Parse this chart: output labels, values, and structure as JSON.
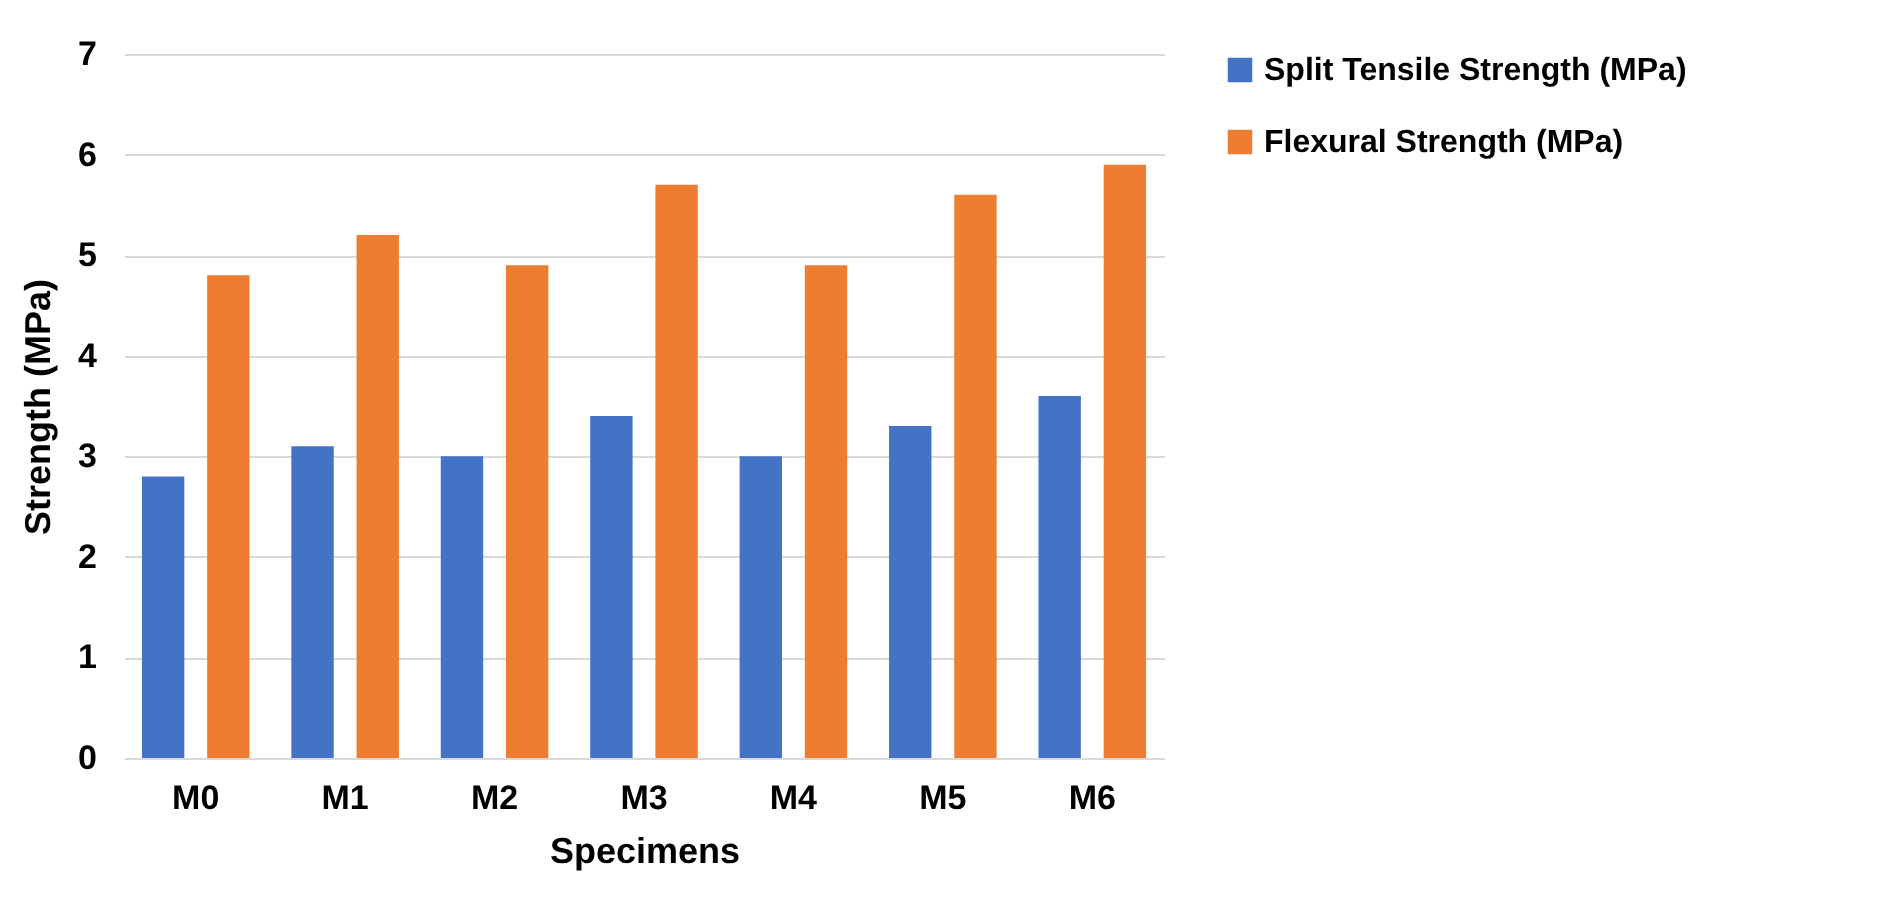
{
  "chart_data": {
    "type": "bar",
    "xlabel": "Specimens",
    "ylabel": "Strength (MPa)",
    "categories": [
      "M0",
      "M1",
      "M2",
      "M3",
      "M4",
      "M5",
      "M6"
    ],
    "series": [
      {
        "name": "Split Tensile Strength (MPa)",
        "color": "#4472c4",
        "values": [
          2.8,
          3.1,
          3.0,
          3.4,
          3.0,
          3.3,
          3.6
        ]
      },
      {
        "name": "Flexural Strength (MPa)",
        "color": "#ed7d31",
        "values": [
          4.8,
          5.2,
          4.9,
          5.7,
          4.9,
          5.6,
          5.9
        ]
      }
    ],
    "ylim": [
      0,
      7
    ],
    "yticks": [
      0,
      1,
      2,
      3,
      4,
      5,
      6,
      7
    ],
    "grid": "y",
    "legend": "right"
  }
}
